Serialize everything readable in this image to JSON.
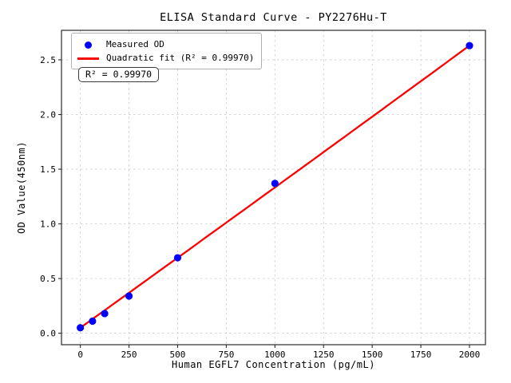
{
  "chart": {
    "title": "ELISA Standard Curve - PY2276Hu-T",
    "xlabel": "Human EGFL7 Concentration (pg/mL)",
    "ylabel": "OD Value(450nm)",
    "legend": [
      {
        "label": "Measured OD",
        "marker": "dot",
        "color": "#0000ff"
      },
      {
        "label": "Quadratic fit (R² = 0.99970)",
        "marker": "line",
        "color": "#ff0000"
      }
    ],
    "annotation": "R² = 0.99970"
  },
  "chart_data": {
    "type": "scatter",
    "title": "ELISA Standard Curve - PY2276Hu-T",
    "xlabel": "Human EGFL7 Concentration (pg/mL)",
    "ylabel": "OD Value(450nm)",
    "series": [
      {
        "name": "Measured OD",
        "x": [
          0,
          62.5,
          125,
          250,
          500,
          1000,
          2000
        ],
        "y": [
          0.05,
          0.11,
          0.18,
          0.34,
          0.69,
          1.37,
          2.63
        ],
        "marker": "circle",
        "color": "#0000ff"
      }
    ],
    "fit": {
      "name": "Quadratic fit",
      "type": "quadratic",
      "r_squared": 0.9997,
      "x_range": [
        0,
        2000
      ],
      "coeffs": {
        "a": 0.05,
        "b": 0.0012767,
        "c": 6.67e-09
      },
      "color": "#ff0000"
    },
    "xlim": [
      -97,
      2082
    ],
    "ylim": [
      -0.105,
      2.77
    ],
    "x_ticks": [
      0,
      250,
      500,
      750,
      1000,
      1250,
      1500,
      1750,
      2000
    ],
    "x_tick_labels": [
      "0",
      "250",
      "500",
      "750",
      "1000",
      "1250",
      "1500",
      "1750",
      "2000"
    ],
    "y_ticks": [
      0.0,
      0.5,
      1.0,
      1.5,
      2.0,
      2.5
    ],
    "y_tick_labels": [
      "0.0",
      "0.5",
      "1.0",
      "1.5",
      "2.0",
      "2.5"
    ],
    "grid": true,
    "grid_style": "dashed",
    "legend_position": "upper left",
    "colors": {
      "points": "#0000ff",
      "fit_line": "#ff0000",
      "grid": "#cfcfcf",
      "frame": "#2a2a2a",
      "background": "#ffffff"
    }
  }
}
